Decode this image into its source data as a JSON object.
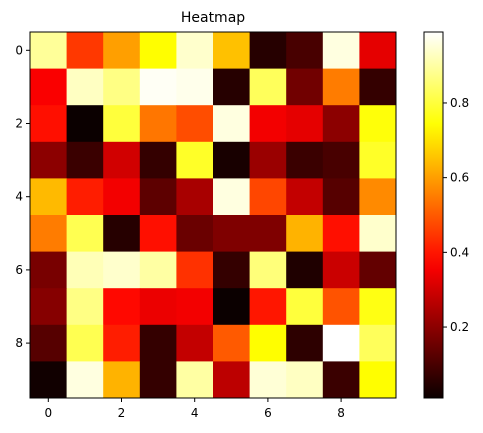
{
  "chart_data": {
    "type": "heatmap",
    "title": "Heatmap",
    "xlabel": "",
    "ylabel": "",
    "colormap": "hot",
    "x_ticks": [
      0,
      2,
      4,
      6,
      8
    ],
    "y_ticks": [
      0,
      2,
      4,
      6,
      8
    ],
    "colorbar": {
      "min": 0.01,
      "max": 0.99,
      "ticks": [
        0.2,
        0.4,
        0.6,
        0.8
      ],
      "tick_labels": [
        "0.2",
        "0.4",
        "0.6",
        "0.8"
      ]
    },
    "grid": false,
    "values": [
      [
        0.89,
        0.45,
        0.6,
        0.74,
        0.94,
        0.65,
        0.05,
        0.1,
        0.96,
        0.33
      ],
      [
        0.36,
        0.93,
        0.87,
        0.98,
        0.97,
        0.05,
        0.83,
        0.16,
        0.55,
        0.07
      ],
      [
        0.39,
        0.01,
        0.8,
        0.54,
        0.48,
        0.96,
        0.35,
        0.33,
        0.2,
        0.75
      ],
      [
        0.2,
        0.08,
        0.3,
        0.07,
        0.78,
        0.03,
        0.22,
        0.08,
        0.1,
        0.78
      ],
      [
        0.64,
        0.41,
        0.35,
        0.13,
        0.24,
        0.96,
        0.47,
        0.28,
        0.12,
        0.57
      ],
      [
        0.55,
        0.82,
        0.05,
        0.39,
        0.15,
        0.18,
        0.18,
        0.63,
        0.39,
        0.94
      ],
      [
        0.17,
        0.92,
        0.94,
        0.9,
        0.44,
        0.07,
        0.86,
        0.04,
        0.29,
        0.14
      ],
      [
        0.19,
        0.87,
        0.38,
        0.34,
        0.35,
        0.01,
        0.4,
        0.8,
        0.49,
        0.76
      ],
      [
        0.12,
        0.82,
        0.41,
        0.07,
        0.28,
        0.5,
        0.74,
        0.06,
        0.99,
        0.83
      ],
      [
        0.02,
        0.96,
        0.63,
        0.07,
        0.9,
        0.27,
        0.95,
        0.93,
        0.08,
        0.74
      ]
    ]
  }
}
